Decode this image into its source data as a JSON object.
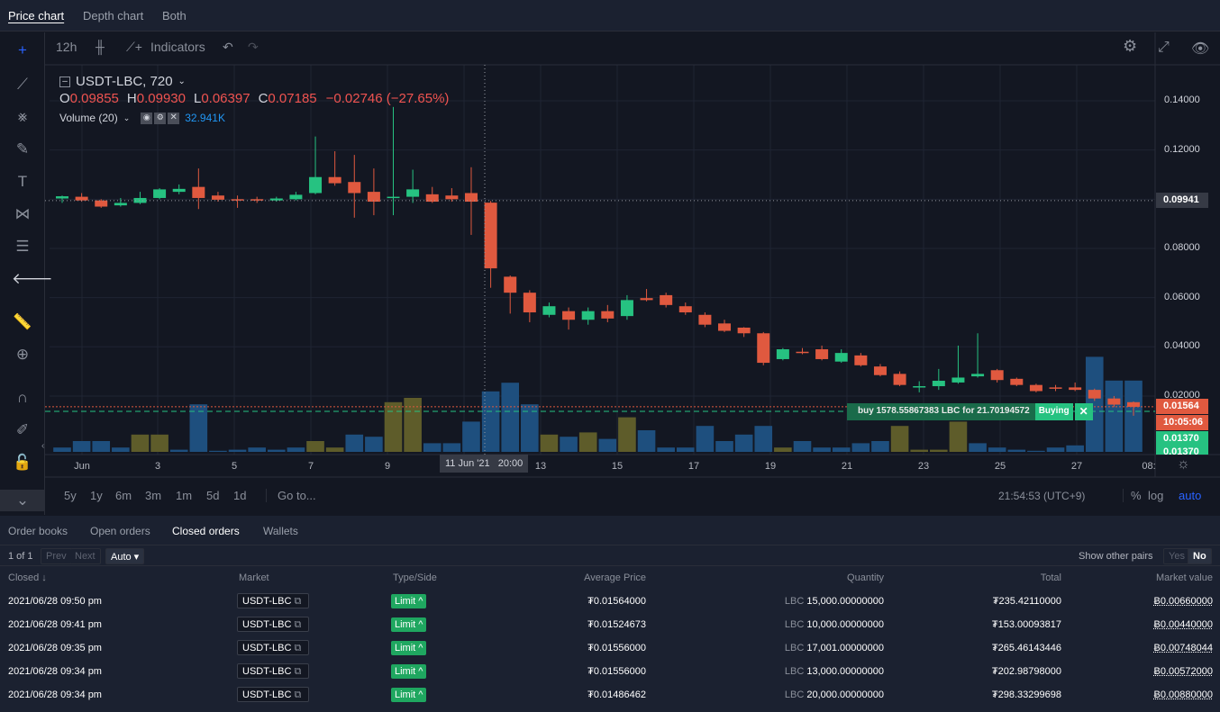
{
  "top_tabs": [
    "Price chart",
    "Depth chart",
    "Both"
  ],
  "toolbar": {
    "interval": "12h",
    "indicators": "Indicators"
  },
  "legend": {
    "symbol": "USDT-LBC, 720",
    "o_label": "O",
    "o": "0.09855",
    "h_label": "H",
    "h": "0.09930",
    "l_label": "L",
    "l": "0.06397",
    "c_label": "C",
    "c": "0.07185",
    "change": "−0.02746 (−27.65%)",
    "volume_label": "Volume (20)",
    "volume_value": "32.941K"
  },
  "price_ticks": [
    "0.14000",
    "0.12000",
    "0.08000",
    "0.06000",
    "0.04000",
    "0.02000"
  ],
  "price_labels": {
    "crosshair": "0.09941",
    "last": "0.01564",
    "countdown": "10:05:06",
    "bid": "0.01370",
    "bid2": "0.01370"
  },
  "order_line": {
    "text": "buy 1578.55867383 LBC for 21.70194572",
    "status": "Buying",
    "close": "✕"
  },
  "time_labels": [
    "Jun",
    "3",
    "5",
    "7",
    "9",
    "13",
    "15",
    "17",
    "19",
    "21",
    "23",
    "25",
    "27",
    "08:"
  ],
  "crosshair_time": "11 Jun '21   20:00",
  "ranges": [
    "5y",
    "1y",
    "6m",
    "3m",
    "1m",
    "5d",
    "1d"
  ],
  "goto": "Go to...",
  "clock": "21:54:53 (UTC+9)",
  "scale_opts": [
    "%",
    "log",
    "auto"
  ],
  "colors": {
    "up": "#26c281",
    "down": "#e0593f",
    "vol_blue": "#1e4f7e",
    "vol_olive": "#5e5c2a"
  },
  "chart_data": {
    "type": "candlestick",
    "interval": "12h",
    "ylim": [
      0.0,
      0.15
    ],
    "candles": [
      [
        0.1003,
        0.1012,
        0.1015,
        0.0985
      ],
      [
        0.101,
        0.0995,
        0.1025,
        0.099
      ],
      [
        0.0995,
        0.097,
        0.1,
        0.0965
      ],
      [
        0.0975,
        0.0985,
        0.1005,
        0.097
      ],
      [
        0.0985,
        0.1005,
        0.103,
        0.098
      ],
      [
        0.1005,
        0.104,
        0.1045,
        0.1
      ],
      [
        0.103,
        0.1042,
        0.106,
        0.102
      ],
      [
        0.105,
        0.1005,
        0.1125,
        0.096
      ],
      [
        0.1015,
        0.0998,
        0.103,
        0.099
      ],
      [
        0.1,
        0.0995,
        0.1015,
        0.0965
      ],
      [
        0.1,
        0.0995,
        0.101,
        0.0985
      ],
      [
        0.0995,
        0.1003,
        0.101,
        0.099
      ],
      [
        0.1,
        0.1018,
        0.103,
        0.0995
      ],
      [
        0.1025,
        0.109,
        0.1255,
        0.102
      ],
      [
        0.109,
        0.1065,
        0.1195,
        0.1055
      ],
      [
        0.107,
        0.1025,
        0.118,
        0.0925
      ],
      [
        0.103,
        0.099,
        0.1125,
        0.0935
      ],
      [
        0.1005,
        0.101,
        0.1375,
        0.0935
      ],
      [
        0.101,
        0.104,
        0.112,
        0.0985
      ],
      [
        0.102,
        0.099,
        0.105,
        0.0985
      ],
      [
        0.1015,
        0.1,
        0.1045,
        0.099
      ],
      [
        0.1025,
        0.099,
        0.113,
        0.0855
      ],
      [
        0.0986,
        0.0719,
        0.0993,
        0.064
      ],
      [
        0.0685,
        0.062,
        0.069,
        0.0535
      ],
      [
        0.062,
        0.054,
        0.063,
        0.05
      ],
      [
        0.053,
        0.0565,
        0.058,
        0.052
      ],
      [
        0.0545,
        0.051,
        0.056,
        0.047
      ],
      [
        0.051,
        0.0545,
        0.056,
        0.049
      ],
      [
        0.0545,
        0.0515,
        0.057,
        0.05
      ],
      [
        0.0525,
        0.059,
        0.061,
        0.051
      ],
      [
        0.0598,
        0.059,
        0.0635,
        0.0585
      ],
      [
        0.061,
        0.057,
        0.062,
        0.056
      ],
      [
        0.0565,
        0.054,
        0.058,
        0.053
      ],
      [
        0.053,
        0.049,
        0.054,
        0.048
      ],
      [
        0.0495,
        0.0465,
        0.051,
        0.046
      ],
      [
        0.0478,
        0.0455,
        0.048,
        0.044
      ],
      [
        0.0455,
        0.0335,
        0.046,
        0.0325
      ],
      [
        0.035,
        0.039,
        0.0395,
        0.0345
      ],
      [
        0.038,
        0.0375,
        0.0395,
        0.037
      ],
      [
        0.039,
        0.035,
        0.0405,
        0.0345
      ],
      [
        0.034,
        0.0375,
        0.039,
        0.0335
      ],
      [
        0.0365,
        0.0325,
        0.0375,
        0.032
      ],
      [
        0.032,
        0.0285,
        0.033,
        0.028
      ],
      [
        0.029,
        0.0245,
        0.03,
        0.024
      ],
      [
        0.0235,
        0.024,
        0.026,
        0.0215
      ],
      [
        0.024,
        0.0262,
        0.031,
        0.0225
      ],
      [
        0.0255,
        0.0275,
        0.0405,
        0.025
      ],
      [
        0.028,
        0.029,
        0.0455,
        0.0275
      ],
      [
        0.0305,
        0.0265,
        0.031,
        0.0255
      ],
      [
        0.027,
        0.0245,
        0.0275,
        0.024
      ],
      [
        0.0245,
        0.022,
        0.025,
        0.0215
      ],
      [
        0.0235,
        0.0232,
        0.0245,
        0.022
      ],
      [
        0.0235,
        0.0225,
        0.0255,
        0.022
      ],
      [
        0.0225,
        0.019,
        0.023,
        0.018
      ],
      [
        0.019,
        0.0165,
        0.02,
        0.0155
      ],
      [
        0.0175,
        0.0156,
        0.0178,
        0.012
      ]
    ],
    "candle_format": [
      "open",
      "close",
      "high",
      "low"
    ],
    "volume_k": [
      2,
      5,
      5,
      2,
      8,
      8,
      1,
      22,
      0.5,
      1,
      2,
      1,
      2,
      5,
      2,
      8,
      7,
      23,
      25,
      4,
      4,
      14,
      28,
      32,
      22,
      8,
      7,
      9,
      6,
      16,
      10,
      2,
      2,
      12,
      5,
      8,
      12,
      2,
      5,
      2,
      2,
      4,
      5,
      12,
      1,
      1,
      14,
      4,
      2,
      1,
      0.5,
      2,
      3,
      44,
      33,
      33
    ],
    "volume_type": [
      "b",
      "b",
      "b",
      "b",
      "o",
      "o",
      "b",
      "b",
      "b",
      "b",
      "b",
      "b",
      "b",
      "o",
      "o",
      "b",
      "b",
      "o",
      "o",
      "b",
      "b",
      "b",
      "b",
      "b",
      "b",
      "o",
      "b",
      "o",
      "b",
      "o",
      "b",
      "b",
      "b",
      "b",
      "b",
      "b",
      "b",
      "o",
      "b",
      "b",
      "b",
      "b",
      "b",
      "o",
      "o",
      "o",
      "o",
      "b",
      "b",
      "b",
      "b",
      "b",
      "b",
      "b",
      "b",
      "b"
    ],
    "last_price": 0.01564,
    "crosshair_price": 0.09941,
    "order_price": 0.01375
  },
  "bottom": {
    "tabs": [
      {
        "first": "O",
        "rest": "rder books",
        "u_first": false
      },
      {
        "first": "O",
        "rest": "pen orders"
      },
      {
        "first": "C",
        "rest": "losed orders"
      },
      {
        "first": "W",
        "rest": "allets"
      }
    ],
    "tab_labels": [
      "Order books",
      "Open orders",
      "Closed orders",
      "Wallets"
    ],
    "page": "1 of 1",
    "prev": "Prev",
    "next": "Next",
    "auto": "Auto ▾",
    "show_other": "Show other pairs",
    "yes": "Yes",
    "no": "No",
    "headers": [
      "Closed ↓",
      "Market",
      "Type/Side",
      "Average Price",
      "Quantity",
      "Total",
      "Market value"
    ],
    "rows": [
      {
        "closed": "2021/06/28 09:50 pm",
        "market": "USDT-LBC",
        "type": "Limit ^",
        "avg": "₮0.01564000",
        "qty_unit": "LBC",
        "qty": "15,000.00000000",
        "total": "₮235.42110000",
        "mv": "Ƀ0.00660000"
      },
      {
        "closed": "2021/06/28 09:41 pm",
        "market": "USDT-LBC",
        "type": "Limit ^",
        "avg": "₮0.01524673",
        "qty_unit": "LBC",
        "qty": "10,000.00000000",
        "total": "₮153.00093817",
        "mv": "Ƀ0.00440000"
      },
      {
        "closed": "2021/06/28 09:35 pm",
        "market": "USDT-LBC",
        "type": "Limit ^",
        "avg": "₮0.01556000",
        "qty_unit": "LBC",
        "qty": "17,001.00000000",
        "total": "₮265.46143446",
        "mv": "Ƀ0.00748044"
      },
      {
        "closed": "2021/06/28 09:34 pm",
        "market": "USDT-LBC",
        "type": "Limit ^",
        "avg": "₮0.01556000",
        "qty_unit": "LBC",
        "qty": "13,000.00000000",
        "total": "₮202.98798000",
        "mv": "Ƀ0.00572000"
      },
      {
        "closed": "2021/06/28 09:34 pm",
        "market": "USDT-LBC",
        "type": "Limit ^",
        "avg": "₮0.01486462",
        "qty_unit": "LBC",
        "qty": "20,000.00000000",
        "total": "₮298.33299698",
        "mv": "Ƀ0.00880000"
      }
    ]
  }
}
